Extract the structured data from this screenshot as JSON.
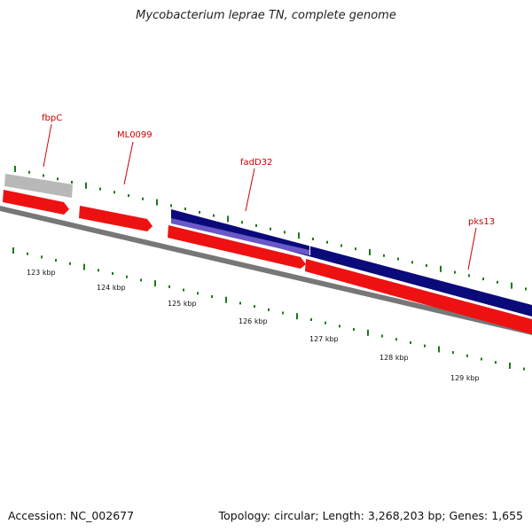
{
  "title": "Mycobacterium leprae TN, complete genome",
  "footer": {
    "accession_label": "Accession: NC_002677",
    "stats_label": "Topology: circular; Length: 3,268,203 bp; Genes: 1,655"
  },
  "colors": {
    "background": "#ffffff",
    "title_text": "#222222",
    "backbone": "#777777",
    "tick": "#1a7a1a",
    "gene_label": "#cc0000",
    "gene_forward": "#ee1111",
    "gene_pseudo": "#b8b8b8",
    "gene_reverse_dark": "#0a0a7a",
    "gene_reverse_light": "#6a58c8"
  },
  "map": {
    "kbp_labels": [
      "123 kbp",
      "124 kbp",
      "125 kbp",
      "126 kbp",
      "127 kbp",
      "128 kbp",
      "129 kbp"
    ],
    "genes": [
      {
        "id": "fbpC",
        "label": "fbpC",
        "color": "gene_pseudo"
      },
      {
        "id": "ML0099",
        "label": "ML0099",
        "color": "gene_forward"
      },
      {
        "id": "fadD32",
        "label": "fadD32",
        "color": "gene_forward"
      },
      {
        "id": "pks13",
        "label": "pks13",
        "color": "gene_forward"
      }
    ]
  }
}
